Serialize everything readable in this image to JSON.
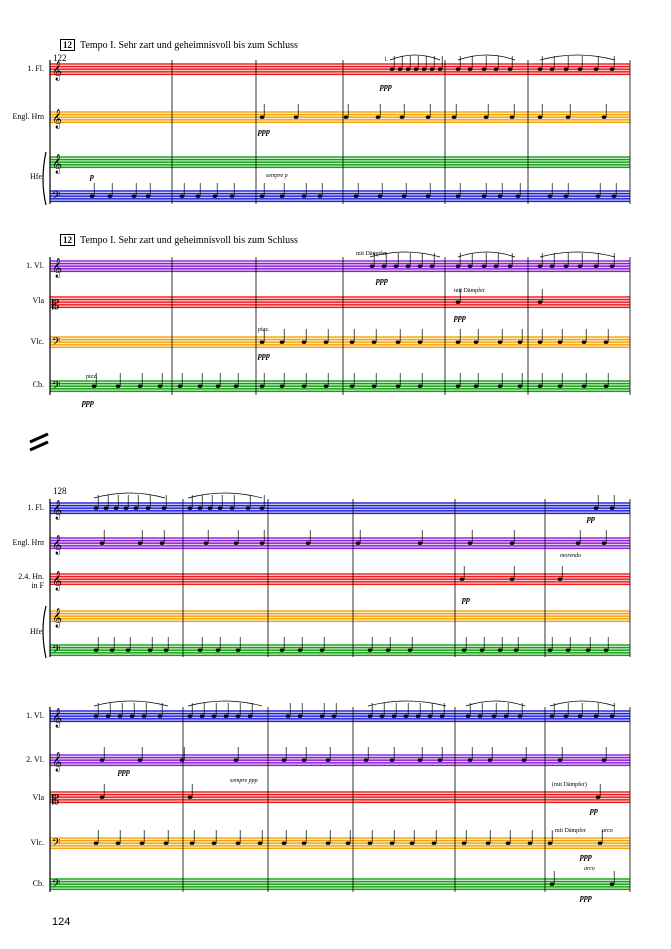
{
  "page_number": "124",
  "system1": {
    "rehearsal": "12",
    "tempo": "Tempo I. Sehr zart und geheimnisvoll bis zum Schluss",
    "measure_number": "122",
    "instruments": [
      "1. Fl.",
      "Engl. Hrn",
      "Hfe."
    ],
    "markings": {
      "fl_ending": "1.",
      "fl_dyn": "ppp",
      "eh_dyn": "ppp",
      "harp_dyn": "p",
      "harp_sempre": "sempre p"
    }
  },
  "system2": {
    "rehearsal": "12",
    "tempo": "Tempo I. Sehr zart und geheimnisvoll bis zum Schluss",
    "instruments": [
      "1. Vl.",
      "Vla",
      "Vlc.",
      "Cb."
    ],
    "markings": {
      "vl_mute": "mit Dämpfer",
      "vl_dyn": "ppp",
      "vla_mute": "mit Dämpfer",
      "vla_dyn": "ppp",
      "vlc_pizz": "pizz.",
      "vlc_dyn": "ppp",
      "cb_pizz": "pizz.",
      "cb_dyn": "ppp"
    }
  },
  "system3": {
    "measure_number": "128",
    "instruments": [
      "1. Fl.",
      "Engl. Hrn",
      "2.4. Hn.\nin F",
      "Hfe."
    ],
    "markings": {
      "fl_dyn": "pp",
      "eh_morendo": "morendo",
      "hn_dyn": "pp"
    }
  },
  "system4": {
    "instruments": [
      "1. Vl.",
      "2. Vl.",
      "Vla",
      "Vlc.",
      "Cb."
    ],
    "markings": {
      "vl2_dyn1": "ppp",
      "vl2_sempre": "sempre ppp",
      "vla_mute": "(mit Dämpfer)",
      "vla_dyn": "pp",
      "vlc_mute": "mit Dämpfer",
      "vlc_arco": "arco",
      "vlc_dyn": "ppp",
      "cb_arco": "arco",
      "cb_dyn": "ppp"
    }
  },
  "colors": {
    "red": "#ee1c1c",
    "orange": "#f5a50a",
    "green": "#12a312",
    "blue": "#1f1fd6",
    "purple": "#8a1fd6"
  }
}
